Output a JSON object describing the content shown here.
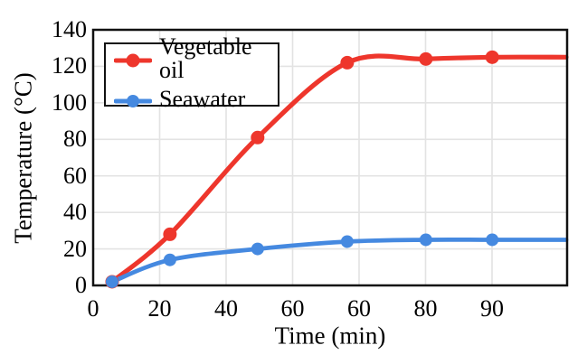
{
  "chart_data": {
    "type": "line",
    "title": "",
    "xlabel": "Time (min)",
    "ylabel": "Temperature (°C)",
    "x_tick_labels": [
      "0",
      "20",
      "40",
      "60",
      "60",
      "80",
      "90"
    ],
    "y_tick_labels": [
      "0",
      "20",
      "40",
      "60",
      "80",
      "100",
      "120",
      "140"
    ],
    "ylim": [
      0,
      140
    ],
    "grid": true,
    "legend_position": "top-left",
    "note": "x tick labels appear with a duplicated 60 in the source image; both curves start at the same first point and extend flat to the right edge of the plot",
    "series": [
      {
        "name": "Vegetable oil",
        "color": "#ee362c",
        "marker": "circle",
        "x": [
          6,
          23,
          50,
          60,
          80,
          90
        ],
        "values": [
          2,
          28,
          81,
          122,
          124,
          125
        ],
        "x_frac": [
          0.04,
          0.162,
          0.347,
          0.536,
          0.702,
          0.842
        ],
        "line_extends_to_right_edge": true,
        "end_value": 125
      },
      {
        "name": "Seawater",
        "color": "#4589e0",
        "marker": "circle",
        "x": [
          6,
          23,
          50,
          60,
          80,
          90
        ],
        "values": [
          2,
          14,
          20,
          24,
          25,
          25
        ],
        "x_frac": [
          0.04,
          0.162,
          0.347,
          0.536,
          0.702,
          0.842
        ],
        "line_extends_to_right_edge": true,
        "end_value": 25
      }
    ]
  },
  "colors": {
    "background": "#ffffff",
    "grid": "#e3e3e3",
    "axis": "#111111",
    "text": "#000000",
    "legend_border": "#111111"
  }
}
